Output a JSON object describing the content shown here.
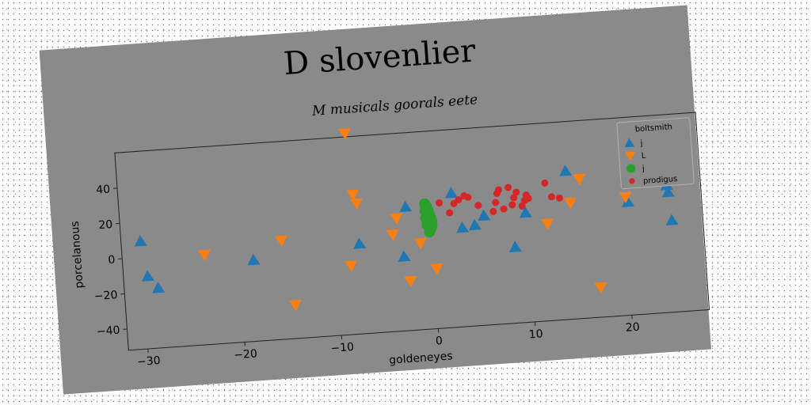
{
  "chart_data": {
    "type": "scatter",
    "title": "D slovenlier",
    "subtitle": "M musicals goorals eete",
    "xlabel": "goldeneyes",
    "ylabel": "porcelanous",
    "xlim": [
      -32,
      28
    ],
    "ylim": [
      -52,
      60
    ],
    "xticks": [
      -30,
      -20,
      -10,
      0,
      10,
      20
    ],
    "yticks": [
      -40,
      -20,
      0,
      20,
      40
    ],
    "grid": false,
    "legend": {
      "title": "boltsmith",
      "position": "top-right"
    },
    "series": [
      {
        "name": "j",
        "marker": "triangle-up",
        "color": "#1f77b4",
        "points": [
          [
            -30.0,
            9
          ],
          [
            -29.5,
            -11
          ],
          [
            -28.5,
            -18
          ],
          [
            -18.5,
            -6
          ],
          [
            -7.5,
            -1
          ],
          [
            -3,
            -10
          ],
          [
            -2.5,
            18
          ],
          [
            2.3,
            24
          ],
          [
            3.2,
            4
          ],
          [
            4.5,
            5
          ],
          [
            5.5,
            10
          ],
          [
            8.5,
            -9
          ],
          [
            9.8,
            10
          ],
          [
            14.2,
            32
          ],
          [
            20.4,
            12
          ],
          [
            24.5,
            20
          ],
          [
            24.6,
            16
          ],
          [
            24.8,
            0
          ]
        ]
      },
      {
        "name": "L",
        "marker": "triangle-down",
        "color": "#ff7f0e",
        "points": [
          [
            -8.2,
            62
          ],
          [
            -7.8,
            27
          ],
          [
            -7.5,
            22
          ],
          [
            -23.5,
            -1
          ],
          [
            -15.5,
            4
          ],
          [
            -14.5,
            -33
          ],
          [
            -8.5,
            -13
          ],
          [
            -4.0,
            3
          ],
          [
            -3.5,
            12
          ],
          [
            -2.5,
            -24
          ],
          [
            -1.2,
            -3
          ],
          [
            0.3,
            -18
          ],
          [
            12.0,
            3
          ],
          [
            14.5,
            14
          ],
          [
            15.6,
            27
          ],
          [
            17.0,
            -35
          ],
          [
            20.2,
            15
          ]
        ]
      },
      {
        "name": "j",
        "marker": "circle",
        "color": "#2ca02c",
        "points": [
          [
            -0.5,
            19
          ],
          [
            -0.3,
            17
          ],
          [
            -0.2,
            15
          ],
          [
            -0.1,
            13
          ],
          [
            0.0,
            11
          ],
          [
            0.1,
            9
          ],
          [
            0.1,
            7
          ],
          [
            0.0,
            5
          ],
          [
            -0.2,
            3
          ],
          [
            -0.4,
            7
          ],
          [
            -0.5,
            11
          ],
          [
            -0.5,
            15
          ]
        ]
      },
      {
        "name": "prodigus",
        "marker": "dot",
        "color": "#d62728",
        "points": [
          [
            1.0,
            19
          ],
          [
            2.0,
            13
          ],
          [
            2.5,
            18
          ],
          [
            3.0,
            20
          ],
          [
            3.6,
            22
          ],
          [
            4.0,
            21
          ],
          [
            5.0,
            16
          ],
          [
            6.5,
            12
          ],
          [
            6.8,
            17
          ],
          [
            7.0,
            22
          ],
          [
            7.2,
            24
          ],
          [
            7.6,
            13
          ],
          [
            8.2,
            25
          ],
          [
            8.5,
            15
          ],
          [
            8.7,
            19
          ],
          [
            9.0,
            22
          ],
          [
            9.5,
            14
          ],
          [
            9.8,
            17
          ],
          [
            10.0,
            20
          ],
          [
            10.2,
            18
          ],
          [
            12.0,
            26
          ],
          [
            12.6,
            18
          ],
          [
            13.4,
            17
          ]
        ]
      }
    ]
  }
}
